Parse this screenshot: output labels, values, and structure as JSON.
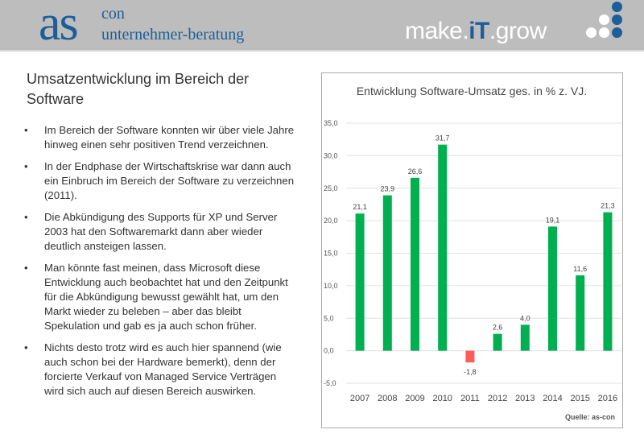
{
  "header": {
    "logo_main": "as",
    "logo_sup": "con",
    "logo_sub": "unternehmer-beratung",
    "slogan_a": "make.",
    "slogan_b": "iT",
    "slogan_c": ".grow",
    "colors": {
      "brand": "#1d5e98",
      "header_bg": "#bdbdbd"
    }
  },
  "slide": {
    "title": "Umsatzentwicklung im Bereich der Software",
    "bullets": [
      "Im Bereich der Software konnten wir über viele Jahre hinweg einen sehr positiven Trend verzeichnen.",
      "In der Endphase der Wirtschaftskrise  war dann auch ein Einbruch im Bereich der Software zu verzeichnen (2011).",
      "Die Abkündigung des Supports für XP und Server 2003 hat den Softwaremarkt dann aber wieder deutlich ansteigen lassen.",
      "Man könnte fast meinen, dass Microsoft  diese Entwicklung auch beobachtet hat und den Zeitpunkt für die Abkündigung bewusst gewählt hat, um den Markt wieder zu beleben – aber das bleibt Spekulation und gab es ja auch schon früher.",
      "Nichts desto trotz wird es auch hier spannend (wie auch schon bei der Hardware bemerkt), denn der forcierte Verkauf von Managed Service Verträgen wird sich auch auf diesen Bereich auswirken."
    ]
  },
  "chart_data": {
    "type": "bar",
    "title": "Entwicklung Software-Umsatz ges. in % z. VJ.",
    "categories": [
      "2007",
      "2008",
      "2009",
      "2010",
      "2011",
      "2012",
      "2013",
      "2014",
      "2015",
      "2016"
    ],
    "values": [
      21.1,
      23.9,
      26.6,
      31.7,
      -1.8,
      2.6,
      4.0,
      19.1,
      11.6,
      21.3
    ],
    "value_labels": [
      "21,1",
      "23,9",
      "26,6",
      "31,7",
      "-1,8",
      "2,6",
      "4,0",
      "19,1",
      "11,6",
      "21,3"
    ],
    "ylim": [
      -5,
      35
    ],
    "yticks": [
      "-5,0",
      "0,0",
      "5,0",
      "10,0",
      "15,0",
      "20,0",
      "25,0",
      "30,0",
      "35,0"
    ],
    "grid": true,
    "legend": "none",
    "source": "Quelle: as-con",
    "colors": {
      "positive": "#00b050",
      "negative": "#ff5b5b"
    }
  }
}
